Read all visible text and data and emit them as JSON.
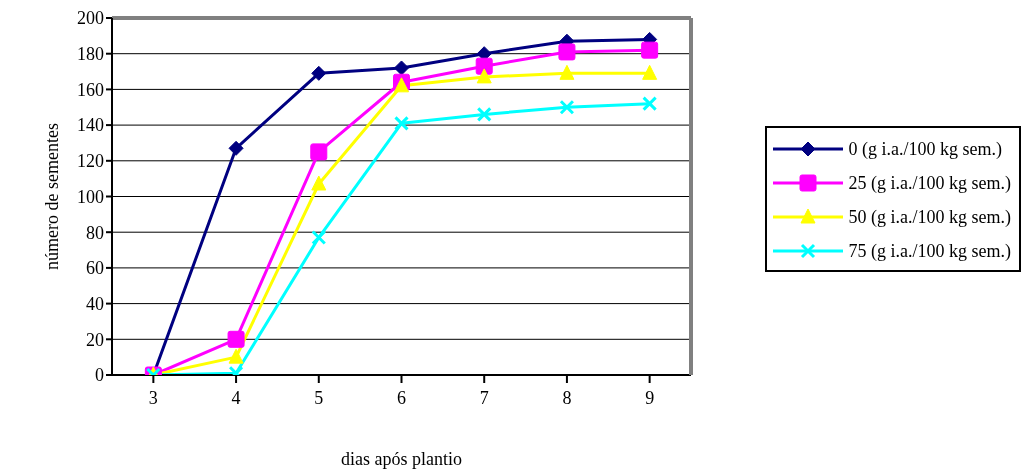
{
  "chart_data": {
    "type": "line",
    "xlabel": "dias após plantio",
    "ylabel": "número de sementes",
    "categories": [
      "3",
      "4",
      "5",
      "6",
      "7",
      "8",
      "9"
    ],
    "series": [
      {
        "name": "0 (g i.a./100 kg sem.)",
        "color": "#000080",
        "marker": "diamond",
        "values": [
          0,
          127,
          169,
          172,
          180,
          187,
          188
        ]
      },
      {
        "name": "25 (g i.a./100 kg sem.)",
        "color": "#ff00ff",
        "marker": "square",
        "values": [
          0,
          20,
          125,
          164,
          173,
          181,
          182
        ]
      },
      {
        "name": "50 (g i.a./100 kg sem.)",
        "color": "#ffff00",
        "marker": "triangle",
        "values": [
          0,
          10,
          107,
          162,
          167,
          169,
          169
        ]
      },
      {
        "name": "75 (g i.a./100 kg sem.)",
        "color": "#00ffff",
        "marker": "cross",
        "values": [
          0,
          1,
          77,
          141,
          146,
          150,
          152
        ]
      }
    ],
    "ylim": [
      0,
      200
    ],
    "yticks": [
      0,
      20,
      40,
      60,
      80,
      100,
      120,
      140,
      160,
      180,
      200
    ],
    "grid": "y",
    "legend": "right",
    "line_style": "solid"
  }
}
